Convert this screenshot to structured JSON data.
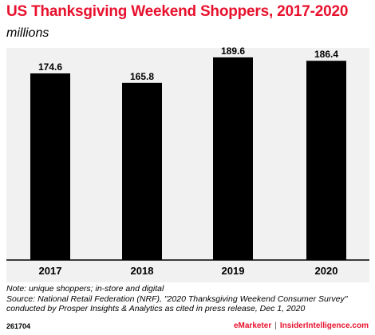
{
  "header": {
    "title": "US Thanksgiving Weekend Shoppers, 2017-2020",
    "subtitle": "millions",
    "title_color": "#e8112d"
  },
  "chart_data": {
    "type": "bar",
    "categories": [
      "2017",
      "2018",
      "2019",
      "2020"
    ],
    "values": [
      174.6,
      165.8,
      189.6,
      186.4
    ],
    "value_labels": [
      "174.6",
      "165.8",
      "189.6",
      "186.4"
    ],
    "bar_color": "#000000",
    "ylim": [
      0,
      200
    ],
    "grid": false
  },
  "notes": {
    "note": "Note: unique shoppers; in-store and digital",
    "source_line1": "Source: National Retail Federation (NRF), \"2020 Thanksgiving Weekend Consumer Survey\"",
    "source_line2": "conducted by Prosper Insights & Analytics as cited in press release, Dec 1, 2020"
  },
  "footer": {
    "chart_id": "261704",
    "brand": "eMarketer",
    "separator": "|",
    "brand2": "InsiderIntelligence.com",
    "brand_color": "#e8112d"
  }
}
